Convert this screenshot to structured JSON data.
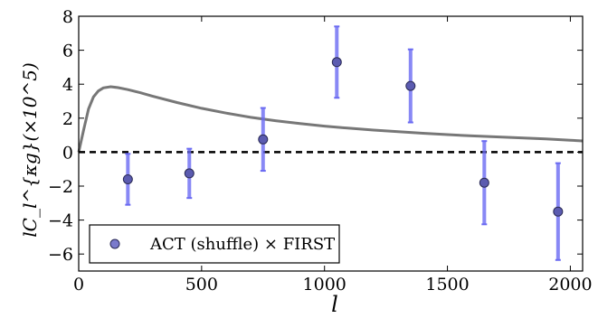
{
  "chart_data": {
    "type": "scatter",
    "xlabel": "l",
    "ylabel": "lC_l^{κg}(×10^5)",
    "xlim": [
      0,
      2050
    ],
    "ylim": [
      -7,
      8
    ],
    "x_ticks": [
      0,
      500,
      1000,
      1500,
      2000
    ],
    "y_ticks": [
      -6,
      -4,
      -2,
      0,
      2,
      4,
      6,
      8
    ],
    "x_tick_labels": [
      "0",
      "500",
      "1000",
      "1500",
      "2000"
    ],
    "y_tick_labels": [
      "−6",
      "−4",
      "−2",
      "0",
      "2",
      "4",
      "6",
      "8"
    ],
    "grid": false,
    "legend_position": "lower-left",
    "reference_line": {
      "y": 0,
      "style": "dashed",
      "color": "#000000"
    },
    "series": [
      {
        "name": "ACT (shuffle) × FIRST",
        "kind": "points-with-errorbars",
        "marker_color": "#5b5bb0",
        "errorbar_color": "#6a6af2",
        "x": [
          200,
          450,
          750,
          1050,
          1350,
          1650,
          1950
        ],
        "y": [
          -1.6,
          -1.25,
          0.75,
          5.3,
          3.9,
          -1.8,
          -3.5
        ],
        "err": [
          1.5,
          1.45,
          1.85,
          2.1,
          2.15,
          2.45,
          2.85
        ]
      },
      {
        "kind": "curve",
        "color": "#777777",
        "x": [
          0,
          20,
          40,
          60,
          80,
          100,
          130,
          160,
          200,
          250,
          300,
          400,
          500,
          600,
          700,
          800,
          900,
          1000,
          1100,
          1200,
          1300,
          1400,
          1500,
          1600,
          1700,
          1800,
          1900,
          2000,
          2050
        ],
        "y": [
          0.0,
          1.3,
          2.55,
          3.25,
          3.6,
          3.78,
          3.85,
          3.8,
          3.68,
          3.5,
          3.3,
          2.92,
          2.58,
          2.3,
          2.05,
          1.85,
          1.68,
          1.53,
          1.41,
          1.3,
          1.2,
          1.11,
          1.03,
          0.96,
          0.9,
          0.84,
          0.78,
          0.7,
          0.66
        ]
      }
    ]
  }
}
